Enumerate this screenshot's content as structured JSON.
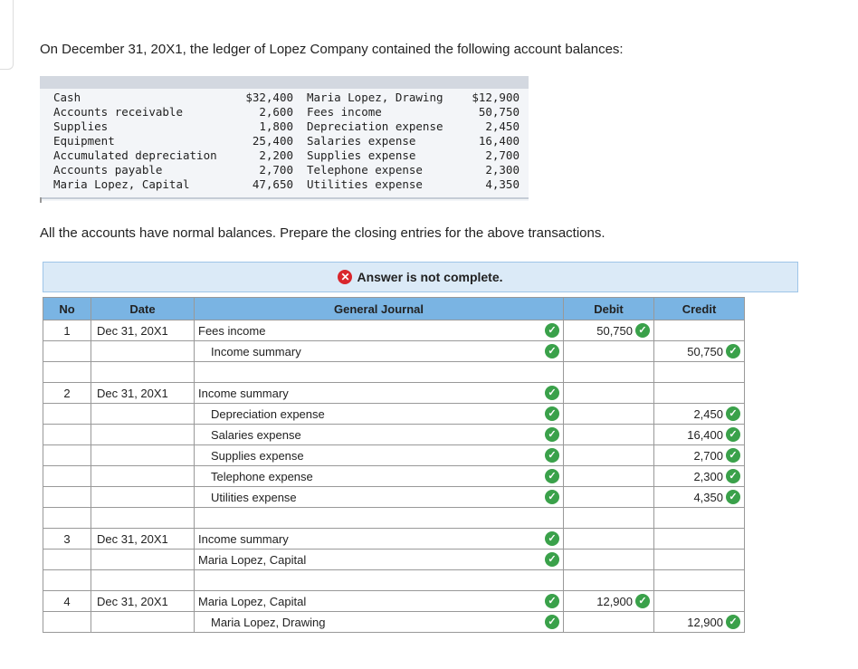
{
  "intro": "On December 31, 20X1, the ledger of Lopez Company contained the following account balances:",
  "ledger": {
    "left": [
      {
        "name": "Cash",
        "value": "$32,400"
      },
      {
        "name": "Accounts receivable",
        "value": "2,600"
      },
      {
        "name": "Supplies",
        "value": "1,800"
      },
      {
        "name": "Equipment",
        "value": "25,400"
      },
      {
        "name": "Accumulated depreciation",
        "value": "2,200"
      },
      {
        "name": "Accounts payable",
        "value": "2,700"
      },
      {
        "name": "Maria Lopez, Capital",
        "value": "47,650"
      }
    ],
    "right": [
      {
        "name": "Maria Lopez, Drawing",
        "value": "$12,900"
      },
      {
        "name": "Fees income",
        "value": "50,750"
      },
      {
        "name": "Depreciation expense",
        "value": "2,450"
      },
      {
        "name": "Salaries expense",
        "value": "16,400"
      },
      {
        "name": "Supplies expense",
        "value": "2,700"
      },
      {
        "name": "Telephone expense",
        "value": "2,300"
      },
      {
        "name": "Utilities expense",
        "value": "4,350"
      }
    ]
  },
  "instruction": "All the accounts have normal balances. Prepare the closing entries for the above transactions.",
  "status": "Answer is not complete.",
  "journal": {
    "headers": {
      "no": "No",
      "date": "Date",
      "journal": "General Journal",
      "debit": "Debit",
      "credit": "Credit"
    },
    "rows": [
      {
        "no": "1",
        "date": "Dec 31, 20X1",
        "account": "Fees income",
        "indent": false,
        "check": true,
        "debit": "50,750",
        "credit": ""
      },
      {
        "no": "",
        "date": "",
        "account": "Income summary",
        "indent": true,
        "check": true,
        "debit": "",
        "credit": "50,750"
      },
      {
        "no": "",
        "date": "",
        "account": "",
        "indent": false,
        "check": false,
        "debit": "",
        "credit": ""
      },
      {
        "no": "2",
        "date": "Dec 31, 20X1",
        "account": "Income summary",
        "indent": false,
        "check": true,
        "debit": "",
        "credit": ""
      },
      {
        "no": "",
        "date": "",
        "account": "Depreciation expense",
        "indent": true,
        "check": true,
        "debit": "",
        "credit": "2,450"
      },
      {
        "no": "",
        "date": "",
        "account": "Salaries expense",
        "indent": true,
        "check": true,
        "debit": "",
        "credit": "16,400"
      },
      {
        "no": "",
        "date": "",
        "account": "Supplies expense",
        "indent": true,
        "check": true,
        "debit": "",
        "credit": "2,700"
      },
      {
        "no": "",
        "date": "",
        "account": "Telephone expense",
        "indent": true,
        "check": true,
        "debit": "",
        "credit": "2,300"
      },
      {
        "no": "",
        "date": "",
        "account": "Utilities expense",
        "indent": true,
        "check": true,
        "debit": "",
        "credit": "4,350"
      },
      {
        "no": "",
        "date": "",
        "account": "",
        "indent": false,
        "check": false,
        "debit": "",
        "credit": ""
      },
      {
        "no": "3",
        "date": "Dec 31, 20X1",
        "account": "Income summary",
        "indent": false,
        "check": true,
        "debit": "",
        "credit": ""
      },
      {
        "no": "",
        "date": "",
        "account": "Maria Lopez, Capital",
        "indent": false,
        "check": true,
        "debit": "",
        "credit": ""
      },
      {
        "no": "",
        "date": "",
        "account": "",
        "indent": false,
        "check": false,
        "debit": "",
        "credit": ""
      },
      {
        "no": "4",
        "date": "Dec 31, 20X1",
        "account": "Maria Lopez, Capital",
        "indent": false,
        "check": true,
        "debit": "12,900",
        "credit": ""
      },
      {
        "no": "",
        "date": "",
        "account": "Maria Lopez, Drawing",
        "indent": true,
        "check": true,
        "debit": "",
        "credit": "12,900"
      }
    ]
  },
  "icons": {
    "check": "check-circle-icon",
    "error": "x-circle-icon"
  },
  "colors": {
    "check": "#3aa14a",
    "error": "#d9262c",
    "header": "#7ab4e3",
    "status_bg": "#dbeaf7"
  }
}
